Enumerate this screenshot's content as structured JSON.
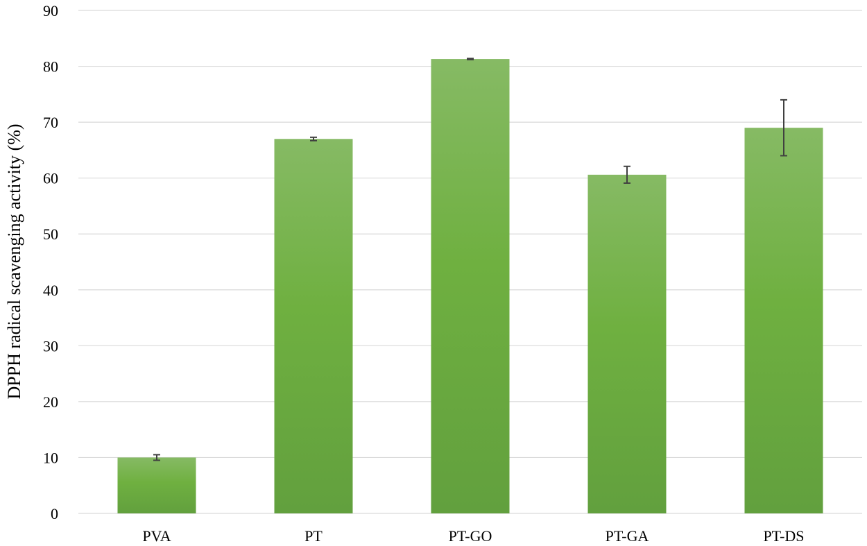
{
  "chart_data": {
    "type": "bar",
    "title": "",
    "xlabel": "",
    "ylabel": "DPPH radical scavenging activity (%)",
    "categories": [
      "PVA",
      "PT",
      "PT-GO",
      "PT-GA",
      "PT-DS"
    ],
    "values": [
      10.0,
      67.0,
      81.3,
      60.6,
      69.0
    ],
    "errors": [
      0.5,
      0.3,
      0.1,
      1.5,
      5.0
    ],
    "ylim": [
      0,
      90
    ],
    "yticks": [
      0,
      10,
      20,
      30,
      40,
      50,
      60,
      70,
      80,
      90
    ],
    "grid": true,
    "legend": "none",
    "colors": {
      "bar_top": "#86BA64",
      "bar_mid": "#6FB040",
      "bar_bottom": "#62A03E",
      "grid": "#D9D9D9",
      "error_bar": "#404040"
    }
  }
}
